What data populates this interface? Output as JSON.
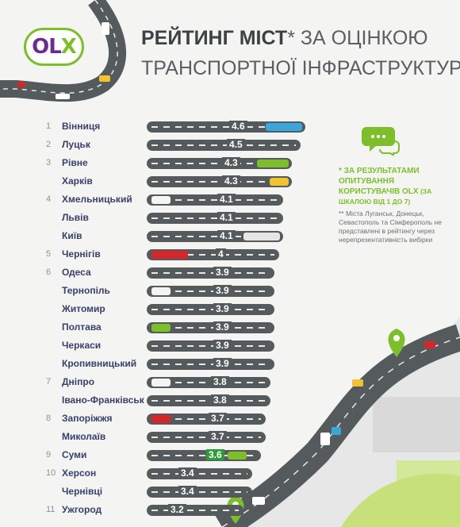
{
  "header": {
    "logo_text": "OLX",
    "title_bold": "РЕЙТИНГ МІСТ",
    "title_star": "*",
    "title_rest": " ЗА ОЦІНКОЮ",
    "title_line2": "ТРАНСПОРТНОЇ ІНФРАСТРУКТУРИ"
  },
  "notes": {
    "survey": "* ЗА РЕЗУЛЬТАТАМИ ОПИТУВАННЯ КОРИСТУВАЧІВ OLX",
    "scale": " (ЗА ШКАЛОЮ ВІД 1 ДО 7)",
    "excluded": "** Міста Луганськ, Донецьк, Севастополь та Сімферополь не представлені в рейтингу через нерепрезентативність вибірки"
  },
  "colors": {
    "road": "#555a5d",
    "brand_green": "#7cbf2a",
    "brand_purple": "#6a2c91",
    "city_text": "#3a3f6a"
  },
  "chart_data": {
    "type": "bar",
    "orientation": "horizontal",
    "scale": [
      1,
      7
    ],
    "categories": [
      "Вінниця",
      "Луцьк",
      "Рівне",
      "Харків",
      "Хмельницький",
      "Львів",
      "Київ",
      "Чернігів",
      "Одеса",
      "Тернопіль",
      "Житомир",
      "Полтава",
      "Черкаси",
      "Кропивницький",
      "Дніпро",
      "Івано-Франківськ",
      "Запоріжжя",
      "Миколаїв",
      "Суми",
      "Херсон",
      "Чернівці",
      "Ужгород"
    ],
    "ranks": [
      "1",
      "2",
      "3",
      "",
      "4",
      "",
      "",
      "5",
      "6",
      "",
      "",
      "",
      "",
      "",
      "7",
      "",
      "8",
      "",
      "9",
      "10",
      "",
      "11"
    ],
    "values": [
      4.6,
      4.5,
      4.3,
      4.3,
      4.1,
      4.1,
      4.1,
      4,
      3.9,
      3.9,
      3.9,
      3.9,
      3.9,
      3.9,
      3.8,
      3.8,
      3.7,
      3.7,
      3.6,
      3.4,
      3.4,
      3.2
    ],
    "value_labels": [
      "4.6",
      "4.5",
      "4.3",
      "4.3",
      "4.1",
      "4.1",
      "4.1",
      "4",
      "3.9",
      "3.9",
      "3.9",
      "3.9",
      "3.9",
      "3.9",
      "3.8",
      "3.8",
      "3.7",
      "3.7",
      "3.6",
      "3.4",
      "3.4",
      "3.2"
    ],
    "cars": [
      "blue-bus",
      "",
      "green-car",
      "yellow-car",
      "white-car",
      "",
      "white-truck",
      "red-bus",
      "",
      "white-car",
      "",
      "green-car",
      "",
      "",
      "white-car",
      "",
      "red-car",
      "",
      "green-car",
      "",
      "",
      ""
    ]
  }
}
